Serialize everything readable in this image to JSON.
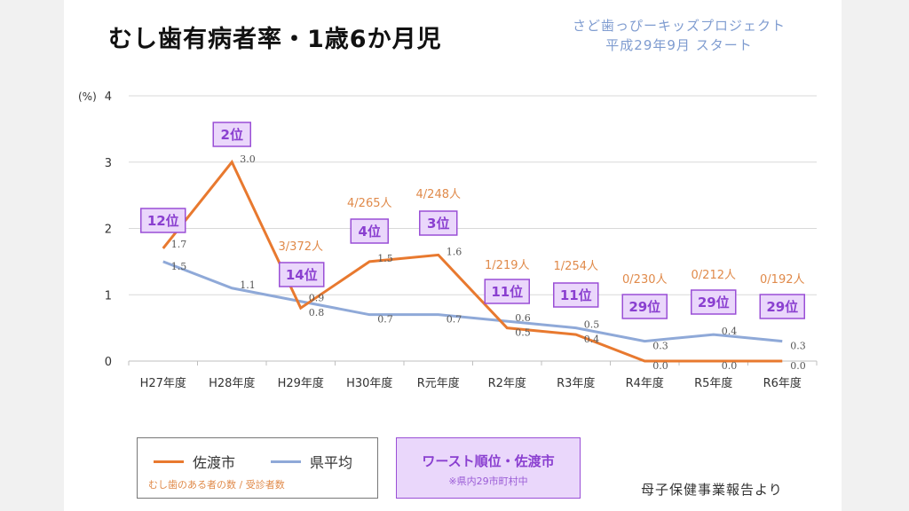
{
  "header": {
    "title": "むし歯有病者率・1歳6か月児",
    "project_line1": "さど歯っぴーキッズプロジェクト",
    "project_line2": "平成29年9月 スタート"
  },
  "chart_data": {
    "type": "line",
    "title": "むし歯有病者率・1歳6か月児",
    "ylabel": "(%)",
    "ylim": [
      0,
      4
    ],
    "yticks": [
      "0",
      "1",
      "2",
      "3",
      "4"
    ],
    "grid": true,
    "categories": [
      "H27年度",
      "H28年度",
      "H29年度",
      "H30年度",
      "R元年度",
      "R2年度",
      "R3年度",
      "R4年度",
      "R5年度",
      "R6年度"
    ],
    "series": [
      {
        "name": "佐渡市",
        "color": "#e8792f",
        "values": [
          1.7,
          3.0,
          0.8,
          1.5,
          1.6,
          0.5,
          0.4,
          0.0,
          0.0,
          0.0
        ],
        "labels": [
          "1.7",
          "3.0",
          "0.8",
          "1.5",
          "1.6",
          "0.5",
          "0.4",
          "0.0",
          "0.0",
          "0.0"
        ]
      },
      {
        "name": "県平均",
        "color": "#8fa9d8",
        "values": [
          1.5,
          1.1,
          0.9,
          0.7,
          0.7,
          0.6,
          0.5,
          0.3,
          0.4,
          0.3
        ],
        "labels": [
          "1.5",
          "1.1",
          "0.9",
          "0.7",
          "0.7",
          "0.6",
          "0.5",
          "0.3",
          "0.4",
          "0.3"
        ]
      }
    ],
    "ranks": [
      "12位",
      "2位",
      "14位",
      "4位",
      "3位",
      "11位",
      "11位",
      "29位",
      "29位",
      "29位"
    ],
    "counts": [
      "",
      "",
      "3/372人",
      "4/265人",
      "4/248人",
      "1/219人",
      "1/254人",
      "0/230人",
      "0/212人",
      "0/192人"
    ]
  },
  "legend": {
    "note": "むし歯のある者の数 / 受診者数"
  },
  "worst_box": {
    "title": "ワースト順位・佐渡市",
    "subtitle": "※県内29市町村中"
  },
  "source": "母子保健事業報告より"
}
